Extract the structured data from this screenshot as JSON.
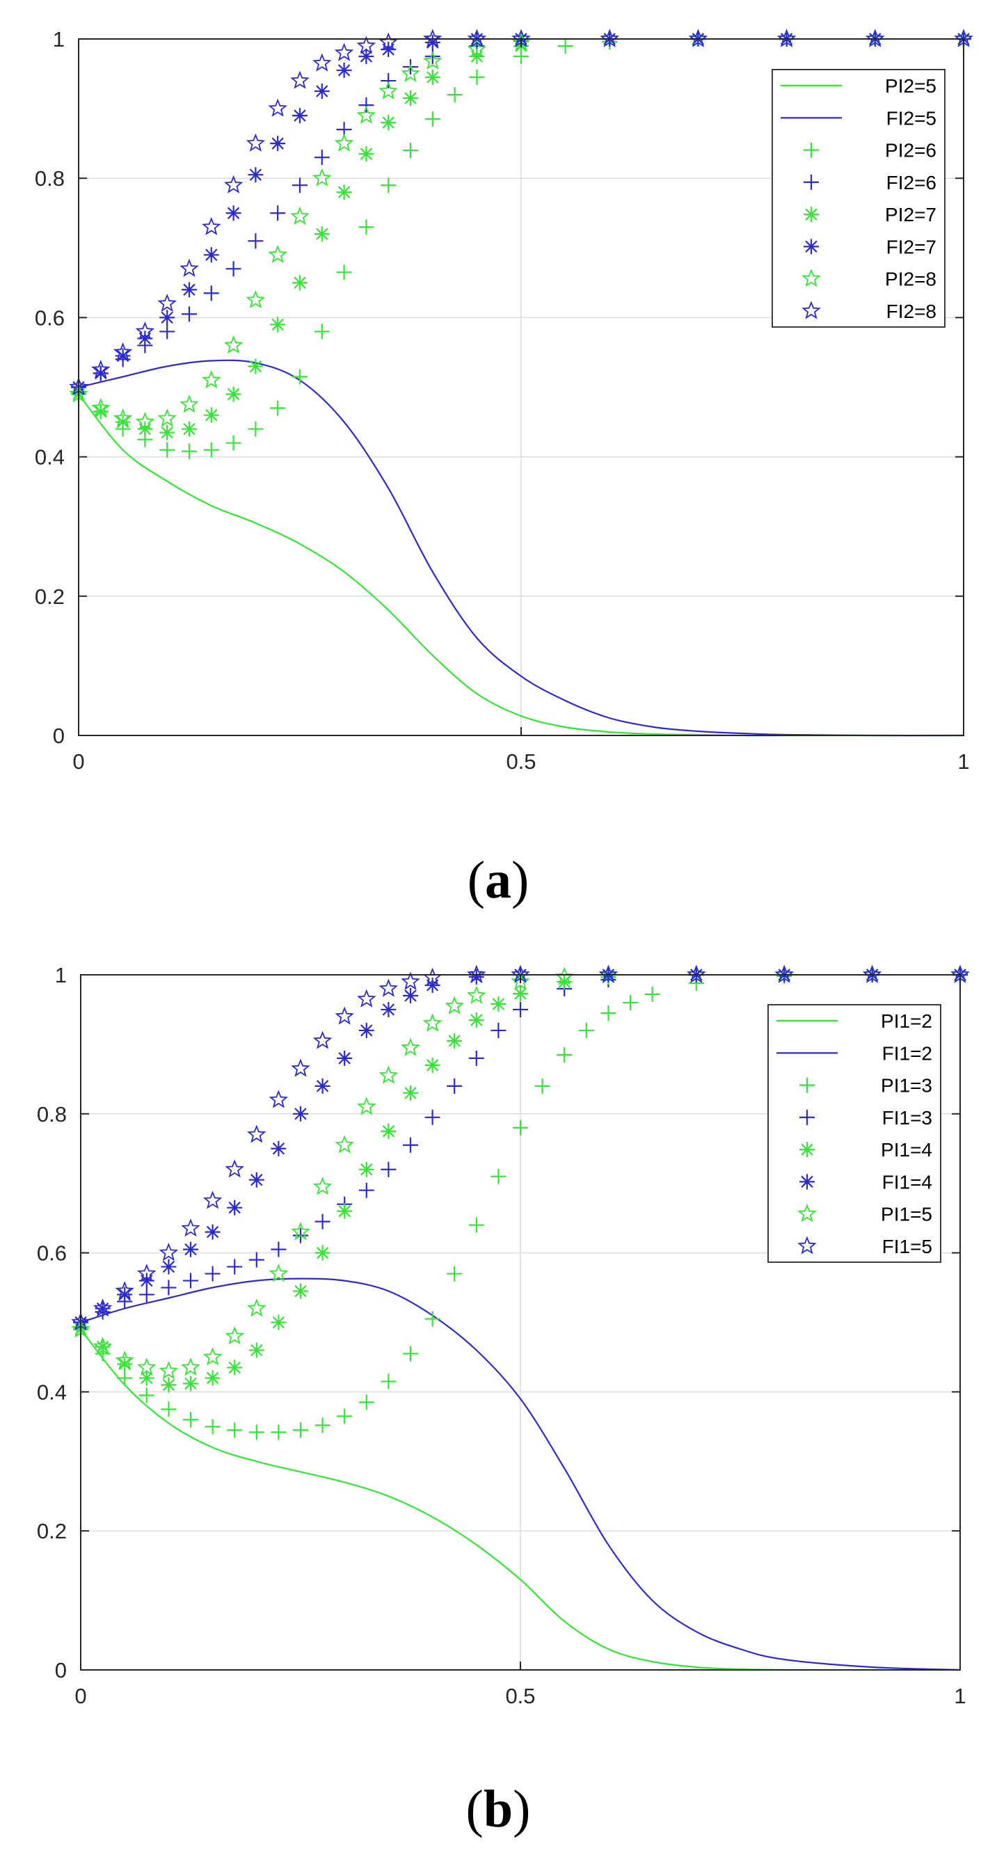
{
  "colors": {
    "green": "#33e633",
    "blue": "#2a2ad0",
    "grid": "#dcdcdc",
    "axis": "#262626"
  },
  "chart_data": [
    {
      "type": "line",
      "caption": {
        "open": "(",
        "letter": "a",
        "close": ")"
      },
      "xlim": [
        0,
        1
      ],
      "ylim": [
        0,
        1
      ],
      "xticks": [
        "0",
        "0.5",
        "1"
      ],
      "yticks": [
        "0",
        "0.2",
        "0.4",
        "0.6",
        "0.8",
        "1"
      ],
      "grid": true,
      "legend_position": "top-right",
      "series": [
        {
          "name": "PI2=5",
          "color": "green",
          "style": "line",
          "x": [
            0,
            0.05,
            0.1,
            0.15,
            0.2,
            0.25,
            0.3,
            0.35,
            0.4,
            0.45,
            0.5,
            0.55,
            0.6,
            0.65,
            0.7,
            0.75,
            0.8,
            0.9,
            1
          ],
          "y": [
            0.49,
            0.41,
            0.365,
            0.33,
            0.305,
            0.275,
            0.235,
            0.18,
            0.115,
            0.06,
            0.028,
            0.012,
            0.005,
            0.002,
            0.001,
            0,
            0,
            0,
            0
          ]
        },
        {
          "name": "FI2=5",
          "color": "blue",
          "style": "line",
          "x": [
            0,
            0.05,
            0.1,
            0.15,
            0.2,
            0.25,
            0.3,
            0.35,
            0.4,
            0.45,
            0.5,
            0.55,
            0.6,
            0.65,
            0.7,
            0.75,
            0.8,
            0.9,
            1
          ],
          "y": [
            0.5,
            0.515,
            0.53,
            0.538,
            0.535,
            0.51,
            0.45,
            0.355,
            0.235,
            0.14,
            0.085,
            0.05,
            0.025,
            0.012,
            0.006,
            0.003,
            0.001,
            0,
            0
          ]
        },
        {
          "name": "PI2=6",
          "color": "green",
          "style": "marker",
          "marker": "plus",
          "x": [
            0,
            0.025,
            0.05,
            0.075,
            0.1,
            0.125,
            0.15,
            0.175,
            0.2,
            0.225,
            0.25,
            0.275,
            0.3,
            0.325,
            0.35,
            0.375,
            0.4,
            0.425,
            0.45,
            0.5,
            0.55,
            0.6,
            0.7,
            0.8,
            0.9,
            1
          ],
          "y": [
            0.49,
            0.465,
            0.44,
            0.425,
            0.41,
            0.408,
            0.41,
            0.42,
            0.44,
            0.47,
            0.515,
            0.58,
            0.665,
            0.73,
            0.79,
            0.84,
            0.885,
            0.92,
            0.945,
            0.975,
            0.99,
            0.996,
            1,
            1,
            1,
            1
          ]
        },
        {
          "name": "FI2=6",
          "color": "blue",
          "style": "marker",
          "marker": "plus",
          "x": [
            0,
            0.025,
            0.05,
            0.075,
            0.1,
            0.125,
            0.15,
            0.175,
            0.2,
            0.225,
            0.25,
            0.275,
            0.3,
            0.325,
            0.35,
            0.375,
            0.4,
            0.45,
            0.5,
            0.6,
            0.7,
            0.8,
            0.9,
            1
          ],
          "y": [
            0.5,
            0.52,
            0.54,
            0.56,
            0.58,
            0.605,
            0.635,
            0.67,
            0.71,
            0.75,
            0.79,
            0.83,
            0.87,
            0.905,
            0.94,
            0.96,
            0.975,
            0.99,
            0.997,
            1,
            1,
            1,
            1,
            1
          ]
        },
        {
          "name": "PI2=7",
          "color": "green",
          "style": "marker",
          "marker": "asterisk",
          "x": [
            0,
            0.025,
            0.05,
            0.075,
            0.1,
            0.125,
            0.15,
            0.175,
            0.2,
            0.225,
            0.25,
            0.275,
            0.3,
            0.325,
            0.35,
            0.375,
            0.4,
            0.45,
            0.5,
            0.6,
            0.7,
            0.8,
            0.9,
            1
          ],
          "y": [
            0.49,
            0.465,
            0.45,
            0.44,
            0.435,
            0.44,
            0.46,
            0.49,
            0.53,
            0.59,
            0.65,
            0.72,
            0.78,
            0.835,
            0.88,
            0.915,
            0.945,
            0.975,
            0.99,
            1,
            1,
            1,
            1,
            1
          ]
        },
        {
          "name": "FI2=7",
          "color": "blue",
          "style": "marker",
          "marker": "asterisk",
          "x": [
            0,
            0.025,
            0.05,
            0.075,
            0.1,
            0.125,
            0.15,
            0.175,
            0.2,
            0.225,
            0.25,
            0.275,
            0.3,
            0.325,
            0.35,
            0.4,
            0.45,
            0.5,
            0.6,
            0.7,
            0.8,
            0.9,
            1
          ],
          "y": [
            0.5,
            0.52,
            0.545,
            0.57,
            0.6,
            0.64,
            0.69,
            0.75,
            0.805,
            0.85,
            0.89,
            0.925,
            0.955,
            0.975,
            0.985,
            0.995,
            1,
            1,
            1,
            1,
            1,
            1,
            1
          ]
        },
        {
          "name": "PI2=8",
          "color": "green",
          "style": "marker",
          "marker": "star",
          "x": [
            0,
            0.025,
            0.05,
            0.075,
            0.1,
            0.125,
            0.15,
            0.175,
            0.2,
            0.225,
            0.25,
            0.275,
            0.3,
            0.325,
            0.35,
            0.375,
            0.4,
            0.45,
            0.5,
            0.6,
            0.7,
            0.8,
            0.9,
            1
          ],
          "y": [
            0.49,
            0.47,
            0.455,
            0.45,
            0.455,
            0.475,
            0.51,
            0.56,
            0.625,
            0.69,
            0.745,
            0.8,
            0.85,
            0.89,
            0.925,
            0.95,
            0.968,
            0.985,
            0.995,
            1,
            1,
            1,
            1,
            1
          ]
        },
        {
          "name": "FI2=8",
          "color": "blue",
          "style": "marker",
          "marker": "star",
          "x": [
            0,
            0.025,
            0.05,
            0.075,
            0.1,
            0.125,
            0.15,
            0.175,
            0.2,
            0.225,
            0.25,
            0.275,
            0.3,
            0.325,
            0.35,
            0.4,
            0.45,
            0.5,
            0.6,
            0.7,
            0.8,
            0.9,
            1
          ],
          "y": [
            0.5,
            0.525,
            0.55,
            0.58,
            0.62,
            0.67,
            0.73,
            0.79,
            0.85,
            0.9,
            0.94,
            0.965,
            0.98,
            0.99,
            0.995,
            1,
            1,
            1,
            1,
            1,
            1,
            1,
            1
          ]
        }
      ]
    },
    {
      "type": "line",
      "caption": {
        "open": "(",
        "letter": "b",
        "close": ")"
      },
      "xlim": [
        0,
        1
      ],
      "ylim": [
        0,
        1
      ],
      "xticks": [
        "0",
        "0.5",
        "1"
      ],
      "yticks": [
        "0",
        "0.2",
        "0.4",
        "0.6",
        "0.8",
        "1"
      ],
      "grid": true,
      "legend_position": "top-right",
      "series": [
        {
          "name": "PI1=2",
          "color": "green",
          "style": "line",
          "x": [
            0,
            0.05,
            0.1,
            0.15,
            0.2,
            0.25,
            0.3,
            0.35,
            0.4,
            0.45,
            0.5,
            0.55,
            0.6,
            0.65,
            0.7,
            0.75,
            0.8,
            0.9,
            1
          ],
          "y": [
            0.49,
            0.41,
            0.355,
            0.32,
            0.3,
            0.285,
            0.27,
            0.25,
            0.22,
            0.18,
            0.13,
            0.07,
            0.03,
            0.012,
            0.004,
            0.001,
            0,
            0,
            0
          ]
        },
        {
          "name": "FI1=2",
          "color": "blue",
          "style": "line",
          "x": [
            0,
            0.05,
            0.1,
            0.15,
            0.2,
            0.25,
            0.3,
            0.35,
            0.4,
            0.45,
            0.5,
            0.55,
            0.6,
            0.65,
            0.7,
            0.75,
            0.8,
            0.9,
            1
          ],
          "y": [
            0.5,
            0.52,
            0.535,
            0.55,
            0.56,
            0.563,
            0.56,
            0.545,
            0.51,
            0.46,
            0.39,
            0.29,
            0.18,
            0.1,
            0.055,
            0.03,
            0.015,
            0.004,
            0
          ]
        },
        {
          "name": "PI1=3",
          "color": "green",
          "style": "marker",
          "marker": "plus",
          "x": [
            0,
            0.025,
            0.05,
            0.075,
            0.1,
            0.125,
            0.15,
            0.175,
            0.2,
            0.225,
            0.25,
            0.275,
            0.3,
            0.325,
            0.35,
            0.375,
            0.4,
            0.425,
            0.45,
            0.475,
            0.5,
            0.525,
            0.55,
            0.575,
            0.6,
            0.625,
            0.65,
            0.7,
            0.8,
            0.9,
            1
          ],
          "y": [
            0.49,
            0.455,
            0.42,
            0.395,
            0.375,
            0.36,
            0.35,
            0.345,
            0.342,
            0.342,
            0.345,
            0.352,
            0.365,
            0.385,
            0.415,
            0.455,
            0.505,
            0.57,
            0.64,
            0.71,
            0.78,
            0.84,
            0.885,
            0.92,
            0.945,
            0.96,
            0.972,
            0.988,
            0.998,
            1,
            1
          ]
        },
        {
          "name": "FI1=3",
          "color": "blue",
          "style": "marker",
          "marker": "plus",
          "x": [
            0,
            0.025,
            0.05,
            0.075,
            0.1,
            0.125,
            0.15,
            0.175,
            0.2,
            0.225,
            0.25,
            0.275,
            0.3,
            0.325,
            0.35,
            0.375,
            0.4,
            0.425,
            0.45,
            0.475,
            0.5,
            0.55,
            0.6,
            0.7,
            0.8,
            0.9,
            1
          ],
          "y": [
            0.5,
            0.515,
            0.53,
            0.54,
            0.55,
            0.56,
            0.57,
            0.58,
            0.59,
            0.605,
            0.625,
            0.645,
            0.67,
            0.69,
            0.72,
            0.755,
            0.795,
            0.84,
            0.88,
            0.92,
            0.95,
            0.98,
            0.993,
            1,
            1,
            1,
            1
          ]
        },
        {
          "name": "PI1=4",
          "color": "green",
          "style": "marker",
          "marker": "asterisk",
          "x": [
            0,
            0.025,
            0.05,
            0.075,
            0.1,
            0.125,
            0.15,
            0.175,
            0.2,
            0.225,
            0.25,
            0.275,
            0.3,
            0.325,
            0.35,
            0.375,
            0.4,
            0.425,
            0.45,
            0.475,
            0.5,
            0.55,
            0.6,
            0.7,
            0.8,
            0.9,
            1
          ],
          "y": [
            0.49,
            0.465,
            0.44,
            0.42,
            0.41,
            0.412,
            0.42,
            0.435,
            0.46,
            0.5,
            0.545,
            0.6,
            0.66,
            0.72,
            0.775,
            0.83,
            0.87,
            0.905,
            0.935,
            0.958,
            0.973,
            0.99,
            0.997,
            1,
            1,
            1,
            1
          ]
        },
        {
          "name": "FI1=4",
          "color": "blue",
          "style": "marker",
          "marker": "asterisk",
          "x": [
            0,
            0.025,
            0.05,
            0.075,
            0.1,
            0.125,
            0.15,
            0.175,
            0.2,
            0.225,
            0.25,
            0.275,
            0.3,
            0.325,
            0.35,
            0.375,
            0.4,
            0.45,
            0.5,
            0.6,
            0.7,
            0.8,
            0.9,
            1
          ],
          "y": [
            0.5,
            0.52,
            0.54,
            0.56,
            0.58,
            0.605,
            0.63,
            0.665,
            0.705,
            0.75,
            0.8,
            0.84,
            0.88,
            0.92,
            0.95,
            0.97,
            0.985,
            0.997,
            1,
            1,
            1,
            1,
            1,
            1
          ]
        },
        {
          "name": "PI1=5",
          "color": "green",
          "style": "marker",
          "marker": "star",
          "x": [
            0,
            0.025,
            0.05,
            0.075,
            0.1,
            0.125,
            0.15,
            0.175,
            0.2,
            0.225,
            0.25,
            0.275,
            0.3,
            0.325,
            0.35,
            0.375,
            0.4,
            0.425,
            0.45,
            0.5,
            0.55,
            0.6,
            0.7,
            0.8,
            0.9,
            1
          ],
          "y": [
            0.49,
            0.465,
            0.445,
            0.435,
            0.43,
            0.435,
            0.45,
            0.48,
            0.52,
            0.57,
            0.63,
            0.695,
            0.755,
            0.81,
            0.855,
            0.895,
            0.93,
            0.955,
            0.97,
            0.99,
            0.997,
            1,
            1,
            1,
            1,
            1
          ]
        },
        {
          "name": "FI1=5",
          "color": "blue",
          "style": "marker",
          "marker": "star",
          "x": [
            0,
            0.025,
            0.05,
            0.075,
            0.1,
            0.125,
            0.15,
            0.175,
            0.2,
            0.225,
            0.25,
            0.275,
            0.3,
            0.325,
            0.35,
            0.375,
            0.4,
            0.45,
            0.5,
            0.6,
            0.7,
            0.8,
            0.9,
            1
          ],
          "y": [
            0.5,
            0.52,
            0.545,
            0.57,
            0.6,
            0.635,
            0.675,
            0.72,
            0.77,
            0.82,
            0.865,
            0.905,
            0.94,
            0.965,
            0.98,
            0.99,
            0.996,
            1,
            1,
            1,
            1,
            1,
            1,
            1
          ]
        }
      ]
    }
  ]
}
